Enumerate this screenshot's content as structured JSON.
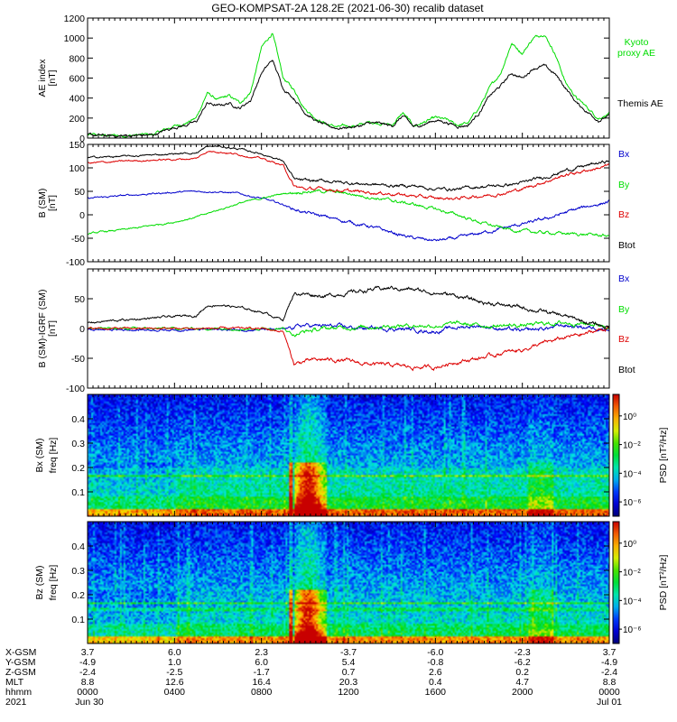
{
  "figure_title": "GEO-KOMPSAT-2A 128.2E (2021-06-30) recalib dataset",
  "chart_data": [
    {
      "type": "line",
      "ylabel": "AE index",
      "yunit": "[nT]",
      "ylim": [
        0,
        1200
      ],
      "yticks": [
        0,
        200,
        400,
        600,
        800,
        1000,
        1200
      ],
      "x_hours": [
        0,
        1,
        2,
        3,
        4,
        4.5,
        5,
        5.5,
        6,
        6.5,
        7,
        7.5,
        8,
        8.5,
        9,
        9.5,
        10,
        10.5,
        11,
        11.5,
        12,
        12.5,
        13,
        13.5,
        14,
        14.5,
        15,
        15.5,
        16,
        16.5,
        17,
        17.5,
        18,
        18.5,
        19,
        19.5,
        20,
        20.5,
        21,
        21.5,
        22,
        22.5,
        23,
        23.5,
        24
      ],
      "series": [
        {
          "name": "Kyoto proxy AE",
          "color": "#00dd00",
          "values": [
            30,
            25,
            28,
            35,
            120,
            150,
            200,
            450,
            380,
            420,
            350,
            460,
            900,
            1050,
            600,
            480,
            300,
            200,
            140,
            110,
            120,
            130,
            160,
            150,
            130,
            250,
            120,
            160,
            200,
            180,
            130,
            150,
            300,
            500,
            650,
            950,
            850,
            1000,
            1050,
            850,
            550,
            400,
            300,
            200,
            250
          ]
        },
        {
          "name": "Themis AE",
          "color": "#000000",
          "values": [
            30,
            20,
            25,
            30,
            110,
            130,
            160,
            350,
            320,
            350,
            300,
            380,
            650,
            780,
            500,
            400,
            260,
            170,
            120,
            100,
            110,
            120,
            150,
            140,
            120,
            220,
            110,
            140,
            180,
            160,
            120,
            130,
            250,
            420,
            520,
            650,
            600,
            700,
            720,
            640,
            500,
            350,
            260,
            180,
            220
          ]
        }
      ]
    },
    {
      "type": "line",
      "ylabel": "B (SM)",
      "yunit": "[nT]",
      "ylim": [
        -100,
        150
      ],
      "yticks": [
        -100,
        -50,
        0,
        50,
        100,
        150
      ],
      "x_hours": [
        0,
        2,
        4,
        5,
        5.5,
        6,
        7,
        8,
        9,
        9.5,
        10,
        11,
        12,
        13,
        14,
        15,
        16,
        17,
        18,
        19,
        20,
        21,
        22,
        23,
        24
      ],
      "series": [
        {
          "name": "Bx",
          "color": "#0000cc",
          "values": [
            35,
            42,
            48,
            50,
            50,
            49,
            45,
            35,
            22,
            12,
            5,
            -5,
            -15,
            -25,
            -38,
            -50,
            -55,
            -50,
            -40,
            -30,
            -20,
            -10,
            5,
            18,
            28
          ]
        },
        {
          "name": "By",
          "color": "#00dd00",
          "values": [
            -40,
            -30,
            -15,
            -5,
            2,
            10,
            25,
            35,
            45,
            48,
            50,
            50,
            45,
            38,
            30,
            22,
            12,
            0,
            -15,
            -28,
            -35,
            -38,
            -40,
            -42,
            -45
          ]
        },
        {
          "name": "Bz",
          "color": "#dd0000",
          "values": [
            110,
            115,
            118,
            120,
            135,
            135,
            128,
            120,
            105,
            60,
            55,
            55,
            50,
            48,
            45,
            40,
            35,
            35,
            40,
            45,
            55,
            70,
            85,
            95,
            105
          ]
        },
        {
          "name": "Btot",
          "color": "#000000",
          "values": [
            122,
            125,
            130,
            132,
            145,
            146,
            140,
            130,
            115,
            75,
            72,
            72,
            68,
            65,
            62,
            62,
            55,
            55,
            60,
            62,
            68,
            80,
            95,
            105,
            115
          ]
        }
      ]
    },
    {
      "type": "line",
      "ylabel": "B (SM)-IGRF (SM)",
      "yunit": "[nT]",
      "ylim": [
        -100,
        100
      ],
      "yticks": [
        -100,
        -50,
        0,
        50
      ],
      "x_hours": [
        0,
        2,
        4,
        5,
        5.5,
        6,
        7,
        8,
        9,
        9.5,
        10,
        11,
        12,
        13,
        14,
        15,
        16,
        17,
        18,
        19,
        20,
        21,
        22,
        23,
        24
      ],
      "series": [
        {
          "name": "Bx",
          "color": "#0000cc",
          "values": [
            -2,
            -2,
            -2,
            -2,
            -2,
            -2,
            -2,
            -2,
            -2,
            3,
            5,
            4,
            2,
            0,
            0,
            -2,
            -5,
            2,
            5,
            0,
            -5,
            0,
            5,
            2,
            0
          ]
        },
        {
          "name": "By",
          "color": "#00dd00",
          "values": [
            0,
            0,
            0,
            0,
            0,
            0,
            0,
            0,
            0,
            -10,
            -5,
            0,
            2,
            3,
            5,
            5,
            5,
            8,
            5,
            5,
            5,
            8,
            10,
            8,
            5
          ]
        },
        {
          "name": "Bz",
          "color": "#dd0000",
          "values": [
            0,
            0,
            0,
            0,
            0,
            0,
            0,
            0,
            -5,
            -60,
            -55,
            -52,
            -55,
            -60,
            -62,
            -65,
            -65,
            -55,
            -50,
            -42,
            -35,
            -25,
            -15,
            -8,
            2
          ]
        },
        {
          "name": "Btot",
          "color": "#000000",
          "values": [
            10,
            15,
            20,
            22,
            38,
            40,
            35,
            28,
            15,
            60,
            58,
            55,
            60,
            65,
            68,
            65,
            60,
            55,
            45,
            40,
            35,
            28,
            20,
            10,
            2
          ]
        }
      ]
    },
    {
      "type": "heatmap",
      "ylabel": "Bx (SM)",
      "yunit": "freq [Hz]",
      "ylim": [
        0,
        0.5
      ],
      "yticks": [
        0.1,
        0.2,
        0.3,
        0.4
      ],
      "colorbar_label": "PSD [nT²/Hz]",
      "colorbar_ticks": [
        "10⁰",
        "10⁻²",
        "10⁻⁴",
        "10⁻⁶"
      ],
      "colorbar_exponents": [
        0,
        -2,
        -4,
        -6
      ],
      "colorbar_range": [
        -7,
        1.5
      ]
    },
    {
      "type": "heatmap",
      "ylabel": "Bz (SM)",
      "yunit": "freq [Hz]",
      "ylim": [
        0,
        0.5
      ],
      "yticks": [
        0.1,
        0.2,
        0.3,
        0.4
      ],
      "colorbar_label": "PSD [nT²/Hz]",
      "colorbar_ticks": [
        "10⁰",
        "10⁻²",
        "10⁻⁴",
        "10⁻⁶"
      ],
      "colorbar_exponents": [
        0,
        -2,
        -4,
        -6
      ],
      "colorbar_range": [
        -7,
        1.5
      ]
    }
  ],
  "ephemeris": {
    "row_labels": [
      "X-GSM",
      "Y-GSM",
      "Z-GSM",
      "MLT",
      "hhmm",
      "2021"
    ],
    "columns": [
      {
        "hour": 0,
        "values": [
          "3.7",
          "-4.9",
          "-2.4",
          "8.8",
          "0000",
          "Jun 30"
        ]
      },
      {
        "hour": 4,
        "values": [
          "6.0",
          "1.0",
          "-2.5",
          "12.6",
          "0400",
          ""
        ]
      },
      {
        "hour": 8,
        "values": [
          "2.3",
          "6.0",
          "-1.7",
          "16.4",
          "0800",
          ""
        ]
      },
      {
        "hour": 12,
        "values": [
          "-3.7",
          "5.4",
          "0.7",
          "20.3",
          "1200",
          ""
        ]
      },
      {
        "hour": 16,
        "values": [
          "-6.0",
          "-0.8",
          "2.6",
          "0.4",
          "1600",
          ""
        ]
      },
      {
        "hour": 20,
        "values": [
          "-2.3",
          "-6.2",
          "0.2",
          "4.7",
          "2000",
          ""
        ]
      },
      {
        "hour": 24,
        "values": [
          "3.7",
          "-4.9",
          "-2.4",
          "8.8",
          "0000",
          "Jul 01"
        ]
      }
    ]
  }
}
